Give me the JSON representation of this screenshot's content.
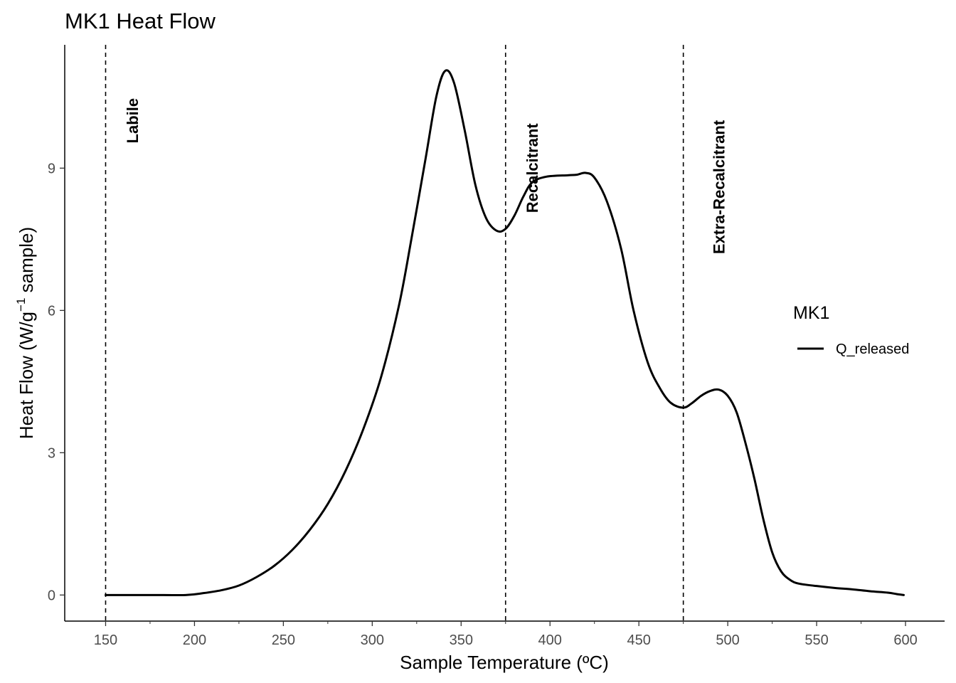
{
  "chart_data": {
    "type": "line",
    "title": "MK1 Heat Flow",
    "xlabel": "Sample Temperature (ºC)",
    "ylabel": {
      "main": "Heat Flow (W/g",
      "superscript": "−1",
      "suffix": " sample)"
    },
    "xlim": [
      127,
      622
    ],
    "ylim": [
      -0.55,
      11.6
    ],
    "x_ticks": [
      150,
      200,
      250,
      300,
      350,
      400,
      450,
      500,
      550,
      600
    ],
    "x_tick_labels": [
      "150",
      "200",
      "250",
      "300",
      "350",
      "400",
      "450",
      "500",
      "550",
      "600"
    ],
    "y_ticks": [
      0,
      3,
      6,
      9
    ],
    "y_tick_labels": [
      "0",
      "3",
      "6",
      "9"
    ],
    "vlines": [
      150,
      375,
      475
    ],
    "annotations": [
      {
        "text": "Labile",
        "x": 165,
        "y": 10.0
      },
      {
        "text": "Recalcitrant",
        "x": 390,
        "y": 9.0
      },
      {
        "text": "Extra-Recalcitrant",
        "x": 495,
        "y": 8.6
      }
    ],
    "legend": {
      "title": "MK1",
      "entries": [
        "Q_released"
      ],
      "position": "right"
    },
    "series": [
      {
        "name": "Q_released",
        "color": "#000000",
        "points": [
          [
            150,
            0.0
          ],
          [
            175,
            0.0
          ],
          [
            195,
            0.0
          ],
          [
            205,
            0.04
          ],
          [
            215,
            0.1
          ],
          [
            225,
            0.2
          ],
          [
            235,
            0.38
          ],
          [
            245,
            0.62
          ],
          [
            255,
            0.95
          ],
          [
            265,
            1.38
          ],
          [
            275,
            1.92
          ],
          [
            285,
            2.62
          ],
          [
            295,
            3.5
          ],
          [
            305,
            4.6
          ],
          [
            315,
            6.1
          ],
          [
            322,
            7.5
          ],
          [
            330,
            9.2
          ],
          [
            336,
            10.5
          ],
          [
            341,
            11.05
          ],
          [
            346,
            10.8
          ],
          [
            352,
            9.8
          ],
          [
            358,
            8.65
          ],
          [
            364,
            7.95
          ],
          [
            370,
            7.68
          ],
          [
            375,
            7.72
          ],
          [
            380,
            8.0
          ],
          [
            385,
            8.4
          ],
          [
            390,
            8.7
          ],
          [
            398,
            8.82
          ],
          [
            410,
            8.85
          ],
          [
            415,
            8.86
          ],
          [
            420,
            8.9
          ],
          [
            425,
            8.8
          ],
          [
            432,
            8.3
          ],
          [
            440,
            7.3
          ],
          [
            447,
            6.0
          ],
          [
            455,
            4.9
          ],
          [
            462,
            4.35
          ],
          [
            468,
            4.05
          ],
          [
            475,
            3.95
          ],
          [
            480,
            4.05
          ],
          [
            485,
            4.2
          ],
          [
            490,
            4.3
          ],
          [
            495,
            4.33
          ],
          [
            500,
            4.2
          ],
          [
            505,
            3.85
          ],
          [
            510,
            3.2
          ],
          [
            515,
            2.45
          ],
          [
            520,
            1.6
          ],
          [
            525,
            0.9
          ],
          [
            530,
            0.5
          ],
          [
            535,
            0.32
          ],
          [
            540,
            0.24
          ],
          [
            550,
            0.19
          ],
          [
            560,
            0.15
          ],
          [
            570,
            0.12
          ],
          [
            580,
            0.08
          ],
          [
            590,
            0.05
          ],
          [
            595,
            0.02
          ],
          [
            599,
            0.0
          ]
        ]
      }
    ]
  }
}
